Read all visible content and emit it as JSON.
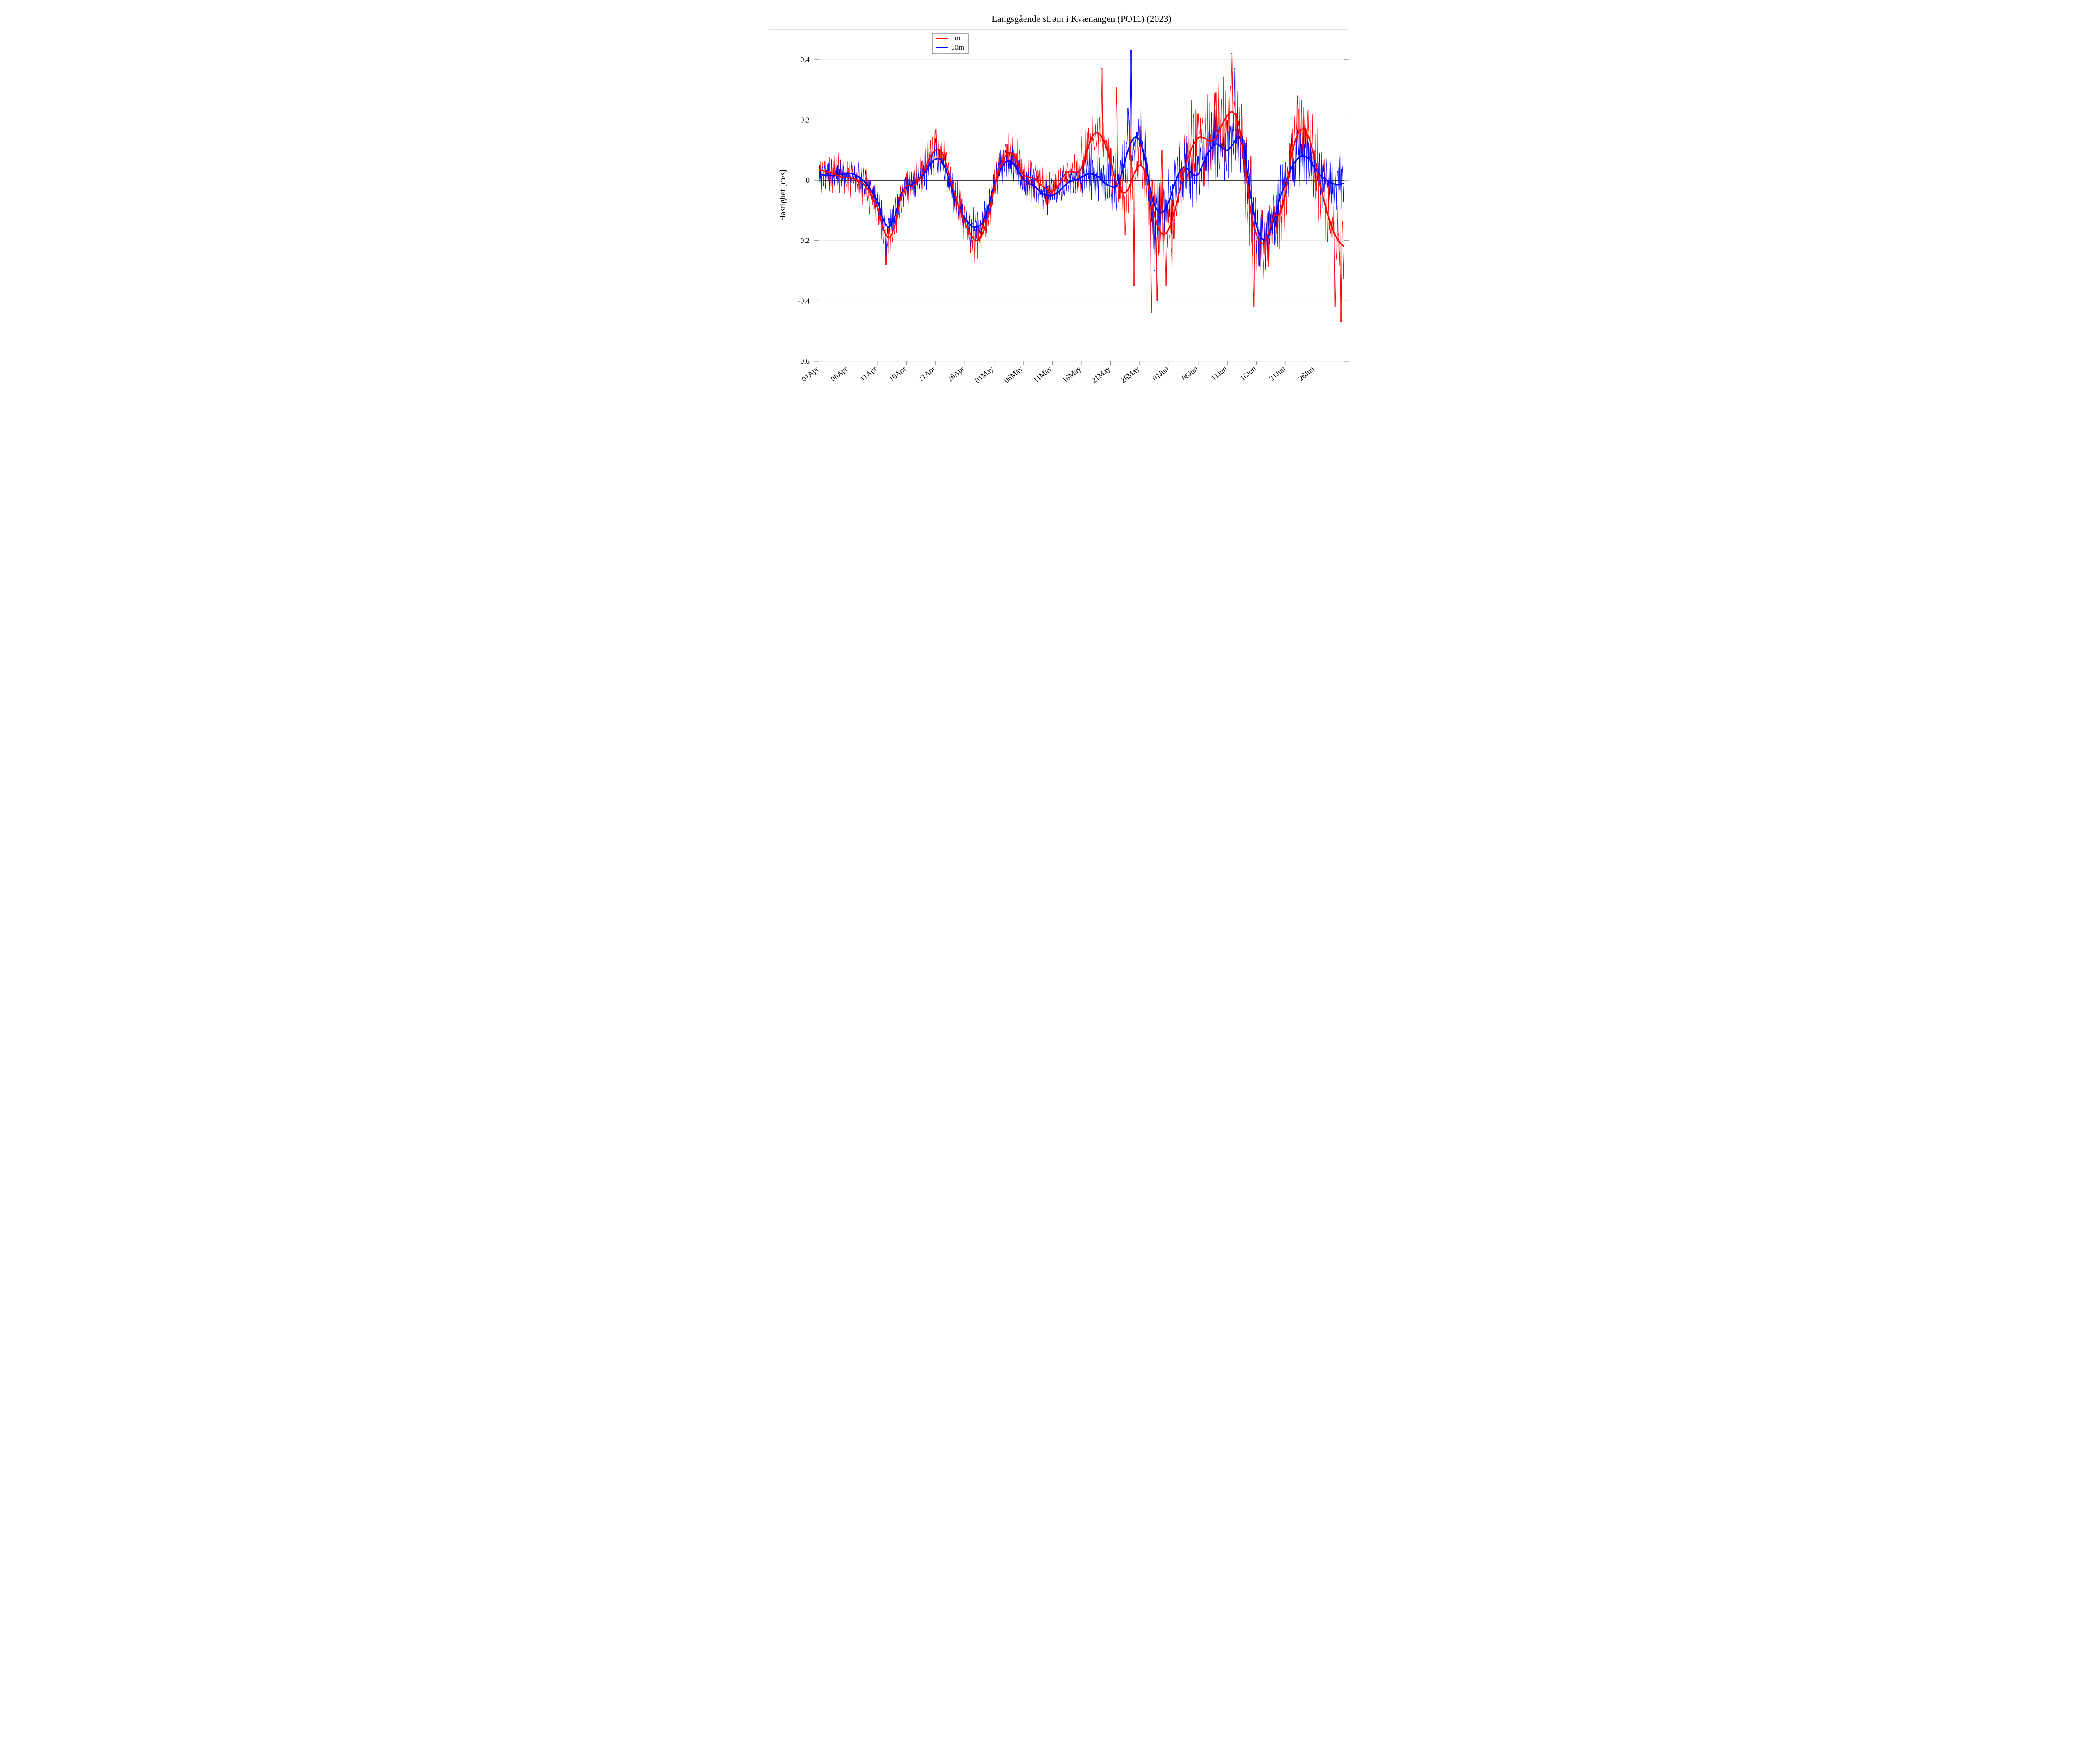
{
  "chart": {
    "type": "line",
    "title": "Langsgående strøm i Kvænangen (PO11) (2023)",
    "ylabel": "Hastighet [m/s]",
    "background_color": "#ffffff",
    "grid_color": "#e6e6e6",
    "border_color": "#bfbfbf",
    "zero_line_color": "#000000",
    "title_fontsize": 22,
    "label_fontsize": 20,
    "tick_fontsize": 18,
    "ylim": [
      -0.6,
      0.5
    ],
    "ytick_step": 0.2,
    "yticks": [
      -0.6,
      -0.4,
      -0.2,
      0,
      0.2,
      0.4
    ],
    "xlim": [
      0,
      90
    ],
    "xticks": [
      0,
      5,
      10,
      15,
      20,
      25,
      30,
      35,
      40,
      45,
      50,
      55,
      60,
      65,
      70,
      75,
      80,
      85
    ],
    "xtick_labels": [
      "01Apr",
      "06Apr",
      "11Apr",
      "16Apr",
      "21Apr",
      "26Apr",
      "01May",
      "06May",
      "11May",
      "16May",
      "21May",
      "26May",
      "01Jun",
      "06Jun",
      "11Jun",
      "16Jun",
      "21Jun",
      "26Jun"
    ],
    "legend": {
      "position": "top-left",
      "items": [
        {
          "label": "1m",
          "color": "#ff0000"
        },
        {
          "label": "10m",
          "color": "#0000ff"
        }
      ]
    },
    "series": [
      {
        "name": "1m_raw",
        "color": "#ff0000",
        "stroke_width": 0.9,
        "opacity": 1.0,
        "noise_amp": 0.055,
        "noise_cycles": 560
      },
      {
        "name": "10m_raw",
        "color": "#0000ff",
        "stroke_width": 0.9,
        "opacity": 1.0,
        "noise_amp": 0.045,
        "noise_cycles": 540
      },
      {
        "name": "1m_smooth",
        "color": "#ff0000",
        "stroke_width": 3.2
      },
      {
        "name": "10m_smooth",
        "color": "#0000ff",
        "stroke_width": 3.2
      }
    ],
    "smooth_1m": [
      [
        0,
        0.035
      ],
      [
        2,
        0.025
      ],
      [
        4,
        0.01
      ],
      [
        6,
        0.005
      ],
      [
        8,
        -0.02
      ],
      [
        10,
        -0.09
      ],
      [
        11,
        -0.16
      ],
      [
        12,
        -0.19
      ],
      [
        13,
        -0.15
      ],
      [
        14,
        -0.06
      ],
      [
        15,
        -0.02
      ],
      [
        16,
        -0.02
      ],
      [
        17,
        0.0
      ],
      [
        18,
        0.03
      ],
      [
        19,
        0.075
      ],
      [
        20,
        0.1
      ],
      [
        21,
        0.095
      ],
      [
        22,
        0.04
      ],
      [
        23,
        -0.03
      ],
      [
        24,
        -0.09
      ],
      [
        25,
        -0.14
      ],
      [
        26,
        -0.18
      ],
      [
        27,
        -0.2
      ],
      [
        28,
        -0.18
      ],
      [
        29,
        -0.12
      ],
      [
        30,
        -0.03
      ],
      [
        31,
        0.04
      ],
      [
        32,
        0.08
      ],
      [
        33,
        0.09
      ],
      [
        34,
        0.06
      ],
      [
        35,
        0.02
      ],
      [
        36,
        0.01
      ],
      [
        37,
        0.005
      ],
      [
        38,
        -0.015
      ],
      [
        39,
        -0.03
      ],
      [
        40,
        -0.035
      ],
      [
        41,
        -0.02
      ],
      [
        42,
        0.015
      ],
      [
        43,
        0.03
      ],
      [
        44,
        0.025
      ],
      [
        45,
        0.04
      ],
      [
        46,
        0.1
      ],
      [
        47,
        0.15
      ],
      [
        48,
        0.155
      ],
      [
        49,
        0.12
      ],
      [
        50,
        0.06
      ],
      [
        51,
        -0.01
      ],
      [
        52,
        -0.04
      ],
      [
        53,
        -0.03
      ],
      [
        54,
        0.02
      ],
      [
        55,
        0.05
      ],
      [
        56,
        0.02
      ],
      [
        57,
        -0.07
      ],
      [
        58,
        -0.15
      ],
      [
        59,
        -0.18
      ],
      [
        60,
        -0.16
      ],
      [
        61,
        -0.1
      ],
      [
        62,
        -0.02
      ],
      [
        63,
        0.06
      ],
      [
        64,
        0.11
      ],
      [
        65,
        0.14
      ],
      [
        66,
        0.14
      ],
      [
        67,
        0.13
      ],
      [
        68,
        0.14
      ],
      [
        69,
        0.18
      ],
      [
        70,
        0.215
      ],
      [
        71,
        0.225
      ],
      [
        72,
        0.18
      ],
      [
        73,
        0.05
      ],
      [
        74,
        -0.1
      ],
      [
        75,
        -0.18
      ],
      [
        76,
        -0.21
      ],
      [
        77,
        -0.18
      ],
      [
        78,
        -0.12
      ],
      [
        79,
        -0.11
      ],
      [
        80,
        -0.04
      ],
      [
        81,
        0.08
      ],
      [
        82,
        0.15
      ],
      [
        83,
        0.17
      ],
      [
        84,
        0.14
      ],
      [
        85,
        0.07
      ],
      [
        86,
        -0.02
      ],
      [
        87,
        -0.1
      ],
      [
        88,
        -0.16
      ],
      [
        89,
        -0.2
      ],
      [
        90,
        -0.22
      ]
    ],
    "smooth_10m": [
      [
        0,
        0.02
      ],
      [
        2,
        0.015
      ],
      [
        4,
        0.02
      ],
      [
        6,
        0.02
      ],
      [
        8,
        -0.01
      ],
      [
        10,
        -0.07
      ],
      [
        11,
        -0.13
      ],
      [
        12,
        -0.155
      ],
      [
        13,
        -0.12
      ],
      [
        14,
        -0.05
      ],
      [
        15,
        -0.02
      ],
      [
        16,
        -0.015
      ],
      [
        17,
        0.0
      ],
      [
        18,
        0.02
      ],
      [
        19,
        0.05
      ],
      [
        20,
        0.07
      ],
      [
        21,
        0.065
      ],
      [
        22,
        0.02
      ],
      [
        23,
        -0.04
      ],
      [
        24,
        -0.09
      ],
      [
        25,
        -0.125
      ],
      [
        26,
        -0.15
      ],
      [
        27,
        -0.155
      ],
      [
        28,
        -0.14
      ],
      [
        29,
        -0.09
      ],
      [
        30,
        -0.02
      ],
      [
        31,
        0.03
      ],
      [
        32,
        0.06
      ],
      [
        33,
        0.06
      ],
      [
        34,
        0.035
      ],
      [
        35,
        0.005
      ],
      [
        36,
        -0.01
      ],
      [
        37,
        -0.02
      ],
      [
        38,
        -0.04
      ],
      [
        39,
        -0.05
      ],
      [
        40,
        -0.05
      ],
      [
        41,
        -0.04
      ],
      [
        42,
        -0.02
      ],
      [
        43,
        -0.005
      ],
      [
        44,
        0.0
      ],
      [
        45,
        0.01
      ],
      [
        46,
        0.02
      ],
      [
        47,
        0.02
      ],
      [
        48,
        0.01
      ],
      [
        49,
        -0.01
      ],
      [
        50,
        -0.02
      ],
      [
        51,
        -0.02
      ],
      [
        52,
        0.03
      ],
      [
        53,
        0.1
      ],
      [
        54,
        0.14
      ],
      [
        55,
        0.13
      ],
      [
        56,
        0.06
      ],
      [
        57,
        -0.05
      ],
      [
        58,
        -0.1
      ],
      [
        59,
        -0.105
      ],
      [
        60,
        -0.07
      ],
      [
        61,
        -0.01
      ],
      [
        62,
        0.035
      ],
      [
        63,
        0.04
      ],
      [
        64,
        0.02
      ],
      [
        65,
        0.02
      ],
      [
        66,
        0.06
      ],
      [
        67,
        0.1
      ],
      [
        68,
        0.12
      ],
      [
        69,
        0.11
      ],
      [
        70,
        0.1
      ],
      [
        71,
        0.12
      ],
      [
        72,
        0.145
      ],
      [
        73,
        0.08
      ],
      [
        74,
        -0.05
      ],
      [
        75,
        -0.15
      ],
      [
        76,
        -0.195
      ],
      [
        77,
        -0.19
      ],
      [
        78,
        -0.13
      ],
      [
        79,
        -0.06
      ],
      [
        80,
        -0.01
      ],
      [
        81,
        0.04
      ],
      [
        82,
        0.07
      ],
      [
        83,
        0.08
      ],
      [
        84,
        0.07
      ],
      [
        85,
        0.04
      ],
      [
        86,
        0.015
      ],
      [
        87,
        0.0
      ],
      [
        88,
        -0.01
      ],
      [
        89,
        -0.015
      ],
      [
        90,
        -0.01
      ]
    ],
    "raw_extra_spikes_1m": [
      [
        11.5,
        -0.28
      ],
      [
        20,
        0.17
      ],
      [
        26,
        -0.24
      ],
      [
        32,
        0.12
      ],
      [
        47,
        0.13
      ],
      [
        48.5,
        0.37
      ],
      [
        51,
        0.31
      ],
      [
        52.5,
        -0.18
      ],
      [
        53.3,
        0.21
      ],
      [
        54,
        -0.35
      ],
      [
        55,
        0.18
      ],
      [
        57,
        -0.44
      ],
      [
        58,
        -0.4
      ],
      [
        58.7,
        0.1
      ],
      [
        59.5,
        -0.35
      ],
      [
        65,
        0.22
      ],
      [
        66,
        -0.02
      ],
      [
        68,
        0.29
      ],
      [
        70,
        0.16
      ],
      [
        70.8,
        0.42
      ],
      [
        74,
        0.08
      ],
      [
        74.5,
        -0.42
      ],
      [
        76,
        -0.1
      ],
      [
        80,
        0.06
      ],
      [
        82,
        0.28
      ],
      [
        88.5,
        -0.42
      ],
      [
        89.5,
        -0.47
      ]
    ],
    "raw_extra_spikes_10m": [
      [
        11.5,
        -0.25
      ],
      [
        20,
        0.14
      ],
      [
        26,
        -0.22
      ],
      [
        32,
        0.1
      ],
      [
        46,
        0.07
      ],
      [
        50.5,
        0.08
      ],
      [
        53,
        0.24
      ],
      [
        53.5,
        0.43
      ],
      [
        54,
        0.1
      ],
      [
        57.6,
        -0.3
      ],
      [
        65,
        0.08
      ],
      [
        70.5,
        0.18
      ],
      [
        71.2,
        0.37
      ],
      [
        75.5,
        -0.285
      ],
      [
        82,
        0.17
      ]
    ]
  }
}
